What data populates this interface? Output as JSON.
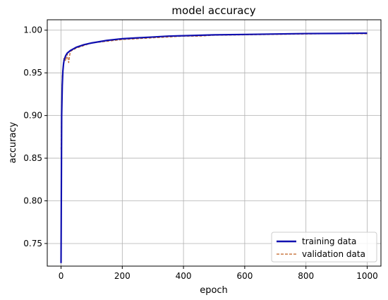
{
  "chart_data": {
    "type": "line",
    "title": "model accuracy",
    "xlabel": "epoch",
    "ylabel": "accuracy",
    "xlim": [
      -45,
      1045
    ],
    "ylim": [
      0.7235,
      1.0122
    ],
    "xticks": [
      0,
      200,
      400,
      600,
      800,
      1000
    ],
    "xtick_labels": [
      "0",
      "200",
      "400",
      "600",
      "800",
      "1000"
    ],
    "yticks": [
      0.75,
      0.8,
      0.85,
      0.9,
      0.95,
      1.0
    ],
    "ytick_labels": [
      "0.75",
      "0.80",
      "0.85",
      "0.90",
      "0.95",
      "1.00"
    ],
    "grid": true,
    "legend_position": "lower-right",
    "series": [
      {
        "name": "training data",
        "color": "#1010b0",
        "style": "solid",
        "x": [
          0,
          2,
          4,
          6,
          8,
          10,
          15,
          20,
          30,
          40,
          50,
          75,
          100,
          150,
          200,
          250,
          300,
          350,
          400,
          450,
          500,
          600,
          700,
          800,
          900,
          1000
        ],
        "y": [
          0.727,
          0.9,
          0.935,
          0.952,
          0.96,
          0.965,
          0.97,
          0.973,
          0.976,
          0.978,
          0.98,
          0.983,
          0.985,
          0.988,
          0.99,
          0.991,
          0.992,
          0.993,
          0.9935,
          0.994,
          0.9945,
          0.995,
          0.9955,
          0.996,
          0.9962,
          0.9965
        ]
      },
      {
        "name": "validation data",
        "color": "#c06020",
        "style": "dashed",
        "x": [
          0,
          2,
          4,
          6,
          8,
          10,
          15,
          20,
          25,
          30,
          40,
          50,
          75,
          100,
          150,
          200,
          250,
          300,
          350,
          400,
          450,
          500,
          600,
          700,
          800,
          900,
          1000
        ],
        "y": [
          0.86,
          0.91,
          0.945,
          0.955,
          0.962,
          0.968,
          0.964,
          0.972,
          0.962,
          0.975,
          0.977,
          0.979,
          0.982,
          0.985,
          0.987,
          0.989,
          0.99,
          0.991,
          0.992,
          0.993,
          0.993,
          0.994,
          0.9945,
          0.995,
          0.9955,
          0.996,
          0.9958
        ]
      }
    ]
  }
}
